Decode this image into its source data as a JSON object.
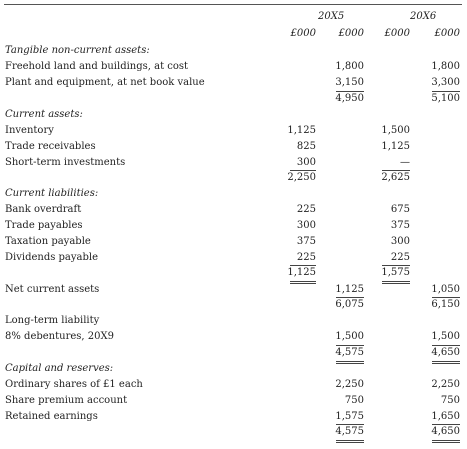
{
  "header": {
    "year1": "20X5",
    "year2": "20X6",
    "units": [
      "£000",
      "£000",
      "£000",
      "£000"
    ]
  },
  "sections": {
    "tangible_heading": "Tangible non-current assets:",
    "freehold": {
      "label": "Freehold land and buildings, at cost",
      "y1": "1,800",
      "y2": "1,800"
    },
    "plant": {
      "label": "Plant and equipment, at net book value",
      "y1": "3,150",
      "y2": "3,300"
    },
    "tangible_total": {
      "y1": "4,950",
      "y2": "5,100"
    },
    "current_assets_heading": "Current assets:",
    "inventory": {
      "label": "Inventory",
      "y1": "1,125",
      "y2": "1,500"
    },
    "receivables": {
      "label": "Trade receivables",
      "y1": "825",
      "y2": "1,125"
    },
    "investments": {
      "label": "Short-term investments",
      "y1": "300",
      "y2": "—"
    },
    "current_assets_total": {
      "y1": "2,250",
      "y2": "2,625"
    },
    "current_liabilities_heading": "Current liabilities:",
    "overdraft": {
      "label": "Bank overdraft",
      "y1": "225",
      "y2": "675"
    },
    "payables": {
      "label": "Trade payables",
      "y1": "300",
      "y2": "375"
    },
    "taxation": {
      "label": "Taxation payable",
      "y1": "375",
      "y2": "300"
    },
    "dividends": {
      "label": "Dividends payable",
      "y1": "225",
      "y2": "225"
    },
    "current_liabilities_total": {
      "y1": "1,125",
      "y2": "1,575"
    },
    "net_current": {
      "label": "Net current assets",
      "y1": "1,125",
      "y2": "1,050"
    },
    "net_current_total": {
      "y1": "6,075",
      "y2": "6,150"
    },
    "long_term_heading": "Long-term liability",
    "debentures": {
      "label": "8% debentures, 20X9",
      "y1": "1,500",
      "y2": "1,500"
    },
    "net_assets": {
      "y1": "4,575",
      "y2": "4,650"
    },
    "capital_heading": "Capital and reserves:",
    "ordinary": {
      "label": "Ordinary shares of £1 each",
      "y1": "2,250",
      "y2": "2,250"
    },
    "premium": {
      "label": "Share premium account",
      "y1": "750",
      "y2": "750"
    },
    "retained": {
      "label": "Retained earnings",
      "y1": "1,575",
      "y2": "1,650"
    },
    "capital_total": {
      "y1": "4,575",
      "y2": "4,650"
    }
  }
}
